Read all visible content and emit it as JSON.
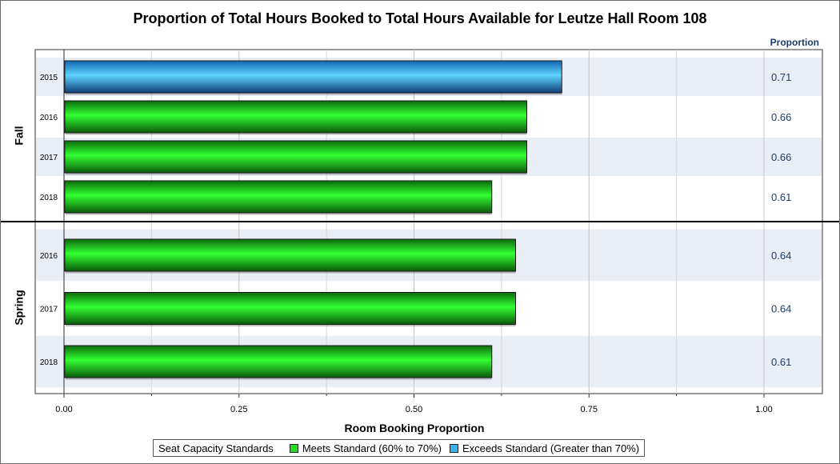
{
  "chart_data": {
    "type": "bar",
    "orientation": "horizontal",
    "title": "Proportion of Total Hours Booked to Total Hours Available for Leutze Hall Room 108",
    "xlabel": "Room Booking Proportion",
    "xlim": [
      0,
      1.05
    ],
    "x_ticks": [
      "0.00",
      "0.25",
      "0.50",
      "0.75",
      "1.00"
    ],
    "value_column_header": "Proportion",
    "grid": true,
    "groups": [
      {
        "name": "Fall",
        "rows": [
          {
            "category": "2015",
            "value": 0.71,
            "label": "0.71",
            "standard": "exceeds"
          },
          {
            "category": "2016",
            "value": 0.66,
            "label": "0.66",
            "standard": "meets"
          },
          {
            "category": "2017",
            "value": 0.66,
            "label": "0.66",
            "standard": "meets"
          },
          {
            "category": "2018",
            "value": 0.61,
            "label": "0.61",
            "standard": "meets"
          }
        ]
      },
      {
        "name": "Spring",
        "rows": [
          {
            "category": "2016",
            "value": 0.644,
            "label": "0.64",
            "standard": "meets"
          },
          {
            "category": "2017",
            "value": 0.644,
            "label": "0.64",
            "standard": "meets"
          },
          {
            "category": "2018",
            "value": 0.61,
            "label": "0.61",
            "standard": "meets"
          }
        ]
      }
    ],
    "legend": {
      "title": "Seat Capacity Standards",
      "placement": "bottom",
      "items": [
        {
          "key": "meets",
          "label": "Meets Standard (60% to 70%)",
          "color": "#22cc22"
        },
        {
          "key": "exceeds",
          "label": "Exceeds Standard (Greater than 70%)",
          "color": "#3ab4ee"
        }
      ]
    }
  },
  "colors": {
    "meets_light": "#3cff3c",
    "meets_dark": "#0a5a0a",
    "exceeds_light": "#55ccff",
    "exceeds_dark": "#0d3f78",
    "band": "#e9edf6",
    "grid": "#c8c8c8"
  }
}
